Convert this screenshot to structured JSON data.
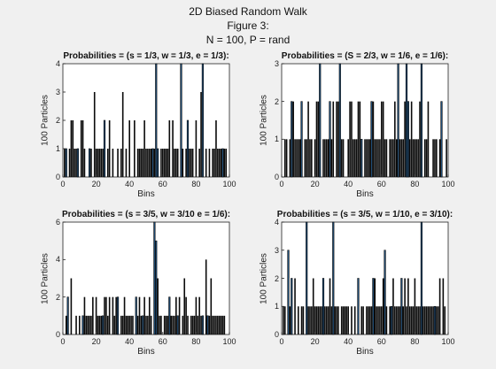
{
  "figure": {
    "title_lines": [
      "2D Biased Random Walk",
      "Figure 3:",
      "N = 100, P = rand"
    ]
  },
  "colors": {
    "dark": "#0a0a0a",
    "blue": "#1f4e79",
    "axes": "#222222"
  },
  "chart_data": [
    {
      "type": "bar",
      "title": "Probabilities = (s = 1/3, w = 1/3, e = 1/3):",
      "xlabel": "Bins",
      "ylabel": "100 Particles",
      "xlim": [
        0,
        100
      ],
      "ylim": [
        0,
        4
      ],
      "xticks": [
        "0",
        "20",
        "40",
        "60",
        "80",
        "100"
      ],
      "yticks": [
        "0",
        "1",
        "2",
        "3",
        "4"
      ],
      "x": [
        1,
        2,
        4,
        5,
        6,
        7,
        8,
        9,
        11,
        12,
        13,
        16,
        17,
        19,
        20,
        21,
        22,
        23,
        24,
        25,
        27,
        28,
        30,
        33,
        35,
        36,
        38,
        40,
        43,
        45,
        46,
        47,
        48,
        49,
        50,
        51,
        52,
        53,
        54,
        55,
        56,
        57,
        59,
        60,
        61,
        62,
        63,
        64,
        66,
        67,
        68,
        69,
        71,
        72,
        74,
        75,
        76,
        77,
        78,
        80,
        82,
        83,
        84,
        86,
        88,
        90,
        91,
        92,
        93,
        94,
        95,
        96,
        97,
        98
      ],
      "values": [
        1,
        1,
        1,
        2,
        2,
        1,
        1,
        1,
        2,
        2,
        1,
        1,
        1,
        3,
        1,
        1,
        1,
        1,
        1,
        2,
        1,
        2,
        1,
        1,
        1,
        3,
        1,
        2,
        2,
        1,
        1,
        1,
        1,
        2,
        1,
        1,
        1,
        1,
        1,
        1,
        4,
        1,
        1,
        1,
        1,
        1,
        1,
        2,
        2,
        1,
        1,
        1,
        4,
        1,
        1,
        2,
        1,
        1,
        1,
        2,
        1,
        3,
        4,
        1,
        1,
        1,
        1,
        2,
        1,
        1,
        1,
        1,
        1,
        1
      ],
      "blue": [
        2,
        9,
        16,
        25,
        44,
        54,
        56,
        57,
        71,
        75,
        84,
        96
      ]
    },
    {
      "type": "bar",
      "title": "Probabilities = (S = 2/3, w = 1/6, e = 1/6):",
      "xlabel": "Bins",
      "ylabel": "100 Particles",
      "xlim": [
        0,
        100
      ],
      "ylim": [
        0,
        3
      ],
      "xticks": [
        "0",
        "20",
        "40",
        "60",
        "80",
        "100"
      ],
      "yticks": [
        "0",
        "1",
        "2",
        "3"
      ],
      "x": [
        2,
        3,
        5,
        6,
        7,
        8,
        9,
        10,
        11,
        12,
        14,
        15,
        16,
        17,
        18,
        20,
        21,
        22,
        23,
        25,
        26,
        27,
        28,
        29,
        30,
        31,
        33,
        34,
        35,
        36,
        37,
        40,
        41,
        42,
        43,
        44,
        45,
        46,
        47,
        48,
        50,
        51,
        52,
        53,
        54,
        55,
        56,
        57,
        58,
        59,
        60,
        61,
        62,
        63,
        65,
        66,
        67,
        68,
        69,
        70,
        71,
        72,
        73,
        74,
        75,
        76,
        77,
        78,
        79,
        80,
        81,
        82,
        83,
        84,
        86,
        87,
        88,
        91,
        92,
        93,
        95,
        96,
        99
      ],
      "values": [
        1,
        1,
        1,
        2,
        2,
        1,
        1,
        1,
        1,
        2,
        1,
        1,
        2,
        1,
        1,
        1,
        2,
        2,
        3,
        1,
        1,
        1,
        1,
        2,
        1,
        2,
        2,
        2,
        3,
        1,
        1,
        1,
        2,
        2,
        1,
        1,
        1,
        2,
        2,
        1,
        1,
        1,
        1,
        1,
        2,
        2,
        1,
        1,
        1,
        1,
        2,
        2,
        1,
        1,
        1,
        1,
        1,
        2,
        1,
        3,
        1,
        1,
        1,
        2,
        3,
        2,
        1,
        2,
        1,
        1,
        1,
        1,
        2,
        3,
        1,
        1,
        2,
        1,
        1,
        1,
        1,
        2,
        1
      ],
      "blue": [
        6,
        12,
        23,
        29,
        35,
        48,
        54,
        70,
        75,
        76,
        84,
        96
      ]
    },
    {
      "type": "bar",
      "title": "Probabilities = (s = 3/5, w = 3/10 e = 1/6):",
      "xlabel": "Bins",
      "ylabel": "100 Particles",
      "xlim": [
        0,
        100
      ],
      "ylim": [
        0,
        6
      ],
      "xticks": [
        "0",
        "20",
        "40",
        "60",
        "80",
        "100"
      ],
      "yticks": [
        "0",
        "2",
        "4",
        "6"
      ],
      "x": [
        2,
        3,
        5,
        8,
        10,
        12,
        13,
        14,
        15,
        16,
        17,
        18,
        20,
        21,
        22,
        23,
        24,
        25,
        26,
        27,
        28,
        30,
        31,
        32,
        33,
        35,
        36,
        37,
        38,
        39,
        40,
        41,
        42,
        44,
        45,
        46,
        47,
        48,
        49,
        50,
        51,
        52,
        53,
        55,
        56,
        57,
        58,
        59,
        61,
        62,
        63,
        64,
        65,
        66,
        67,
        68,
        69,
        70,
        72,
        73,
        74,
        75,
        77,
        78,
        79,
        80,
        81,
        82,
        83,
        84,
        86,
        87,
        88,
        89,
        90,
        91,
        92,
        93,
        94,
        95,
        96,
        97
      ],
      "values": [
        1,
        2,
        3,
        1,
        1,
        1,
        2,
        1,
        1,
        1,
        1,
        2,
        2,
        1,
        1,
        1,
        1,
        2,
        2,
        1,
        2,
        2,
        1,
        2,
        2,
        1,
        1,
        2,
        1,
        1,
        1,
        1,
        1,
        2,
        1,
        2,
        1,
        1,
        2,
        1,
        1,
        2,
        1,
        6,
        5,
        3,
        1,
        1,
        1,
        1,
        1,
        2,
        1,
        1,
        1,
        2,
        1,
        2,
        1,
        3,
        2,
        1,
        1,
        1,
        1,
        2,
        1,
        2,
        1,
        1,
        4,
        1,
        1,
        3,
        1,
        1,
        1,
        1,
        1,
        1,
        1,
        1
      ],
      "blue": [
        3,
        12,
        24,
        33,
        44,
        48,
        55,
        56,
        64,
        69,
        84,
        87
      ]
    },
    {
      "type": "bar",
      "title": "Probabilities = (s = 3/5, w = 1/10, e = 3/10):",
      "xlabel": "Bins",
      "ylabel": "100 Particles",
      "xlim": [
        0,
        100
      ],
      "ylim": [
        0,
        4
      ],
      "xticks": [
        "0",
        "20",
        "40",
        "60",
        "80",
        "100"
      ],
      "yticks": [
        "0",
        "1",
        "2",
        "3",
        "4"
      ],
      "x": [
        1,
        2,
        4,
        5,
        6,
        8,
        10,
        12,
        13,
        15,
        16,
        17,
        18,
        19,
        20,
        21,
        22,
        23,
        24,
        25,
        26,
        27,
        28,
        29,
        30,
        31,
        32,
        33,
        34,
        36,
        37,
        38,
        39,
        40,
        42,
        44,
        46,
        48,
        49,
        51,
        52,
        53,
        54,
        55,
        56,
        57,
        58,
        59,
        60,
        61,
        62,
        63,
        65,
        66,
        67,
        68,
        69,
        70,
        71,
        72,
        73,
        74,
        75,
        76,
        77,
        78,
        79,
        80,
        81,
        82,
        83,
        84,
        85,
        86,
        87,
        88,
        89,
        90,
        91,
        92,
        93,
        94,
        95,
        97,
        98
      ],
      "values": [
        1,
        1,
        3,
        1,
        2,
        2,
        1,
        1,
        1,
        4,
        1,
        1,
        1,
        2,
        1,
        1,
        1,
        1,
        1,
        2,
        1,
        1,
        1,
        2,
        1,
        4,
        1,
        1,
        1,
        1,
        1,
        1,
        1,
        1,
        1,
        1,
        2,
        1,
        1,
        1,
        1,
        1,
        1,
        2,
        2,
        1,
        1,
        1,
        1,
        2,
        3,
        1,
        1,
        1,
        2,
        1,
        1,
        1,
        1,
        2,
        1,
        2,
        1,
        2,
        1,
        1,
        1,
        2,
        1,
        1,
        1,
        4,
        1,
        1,
        1,
        1,
        1,
        1,
        1,
        1,
        1,
        1,
        2,
        2,
        1
      ],
      "blue": [
        4,
        6,
        15,
        25,
        31,
        46,
        55,
        62,
        66,
        72,
        84,
        92
      ]
    }
  ]
}
